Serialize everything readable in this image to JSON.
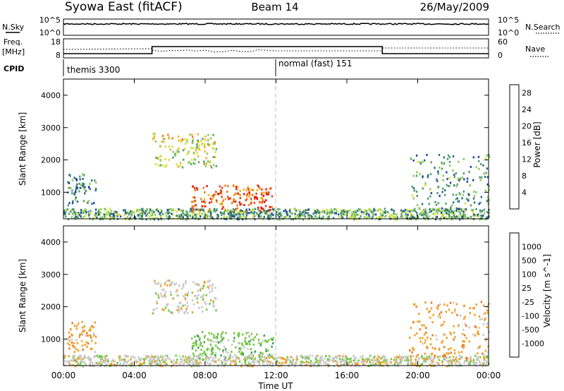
{
  "header": {
    "title_left": "Syowa East (fitACF)",
    "title_center": "Beam 14",
    "title_right": "26/May/2009"
  },
  "noise_panel": {
    "left_label": "N.Sky",
    "right_label": "N.Search",
    "left_ticks": [
      "10^5",
      "10^0"
    ],
    "right_ticks": [
      "10^5",
      "10^0"
    ]
  },
  "freq_panel": {
    "left_label_1": "Freq.",
    "left_label_2": "[MHz]",
    "right_label": "Nave",
    "left_ticks": [
      "18",
      "8"
    ],
    "right_ticks": [
      "60",
      "0"
    ]
  },
  "cpid_panel": {
    "label": "CPID",
    "modes": [
      {
        "name": "themis 3300"
      },
      {
        "name": "normal (fast) 151"
      }
    ]
  },
  "x_axis": {
    "label": "Time UT",
    "ticks": [
      "00:00",
      "04:00",
      "08:00",
      "12:00",
      "16:00",
      "20:00",
      "00:00"
    ]
  },
  "chart_data": [
    {
      "type": "heatmap",
      "title": "",
      "xlabel": "Time UT",
      "ylabel": "Slant Range [km]",
      "xlim": [
        0,
        24
      ],
      "ylim": [
        180,
        4500
      ],
      "y_ticks": [
        "1000",
        "2000",
        "3000",
        "4000"
      ],
      "colorbar": {
        "label": "Power [dB]",
        "ticks": [
          "4",
          "8",
          "12",
          "16",
          "20",
          "24",
          "28"
        ],
        "range": [
          0,
          30
        ],
        "colors": [
          "#1a2fe0",
          "#25479c",
          "#2e6f78",
          "#4f9e6f",
          "#8ecb5a",
          "#d4e23a",
          "#f3b21e",
          "#f17a12",
          "#e8400e",
          "#e81010"
        ]
      },
      "regions": [
        {
          "name": "afternoon echo band",
          "t": [
            5.0,
            8.6
          ],
          "r": [
            1800,
            2850
          ],
          "level": 0.55
        },
        {
          "name": "noon strong echoes",
          "t": [
            7.2,
            11.8
          ],
          "r": [
            400,
            1250
          ],
          "level": 0.85
        },
        {
          "name": "near-range echoes",
          "t": [
            0.0,
            24.0
          ],
          "r": [
            190,
            520
          ],
          "level": 0.35
        },
        {
          "name": "evening scatter",
          "t": [
            19.5,
            24.0
          ],
          "r": [
            400,
            2200
          ],
          "level": 0.3
        },
        {
          "name": "early scattered echoes",
          "t": [
            0.2,
            1.8
          ],
          "r": [
            600,
            1600
          ],
          "level": 0.25
        }
      ]
    },
    {
      "type": "heatmap",
      "title": "",
      "xlabel": "Time UT",
      "ylabel": "Slant Range [km]",
      "xlim": [
        0,
        24
      ],
      "ylim": [
        180,
        4500
      ],
      "y_ticks": [
        "1000",
        "2000",
        "3000",
        "4000"
      ],
      "colorbar": {
        "label": "Velocity [m s^-1]",
        "ticks": [
          "1000",
          "500",
          "100",
          "25",
          "-25",
          "-100",
          "-500",
          "-1000"
        ],
        "range": [
          -1000,
          1000
        ],
        "colors": [
          "#2448c8",
          "#2f6fa6",
          "#3f9a5a",
          "#6fc83a",
          "#c8c8c8",
          "#f2a020",
          "#ee7418",
          "#e8380e",
          "#e81010"
        ]
      },
      "regions": [
        {
          "name": "afternoon echo band",
          "t": [
            5.0,
            8.6
          ],
          "r": [
            1800,
            2850
          ],
          "level": 25
        },
        {
          "name": "noon echoes",
          "t": [
            7.2,
            11.8
          ],
          "r": [
            400,
            1250
          ],
          "level": 100
        },
        {
          "name": "near-range echoes",
          "t": [
            0.0,
            24.0
          ],
          "r": [
            190,
            520
          ],
          "level": 25
        },
        {
          "name": "evening scatter",
          "t": [
            19.5,
            24.0
          ],
          "r": [
            400,
            2200
          ],
          "level": -100
        },
        {
          "name": "early scattered echoes",
          "t": [
            0.2,
            1.8
          ],
          "r": [
            600,
            1600
          ],
          "level": -100
        }
      ]
    }
  ]
}
